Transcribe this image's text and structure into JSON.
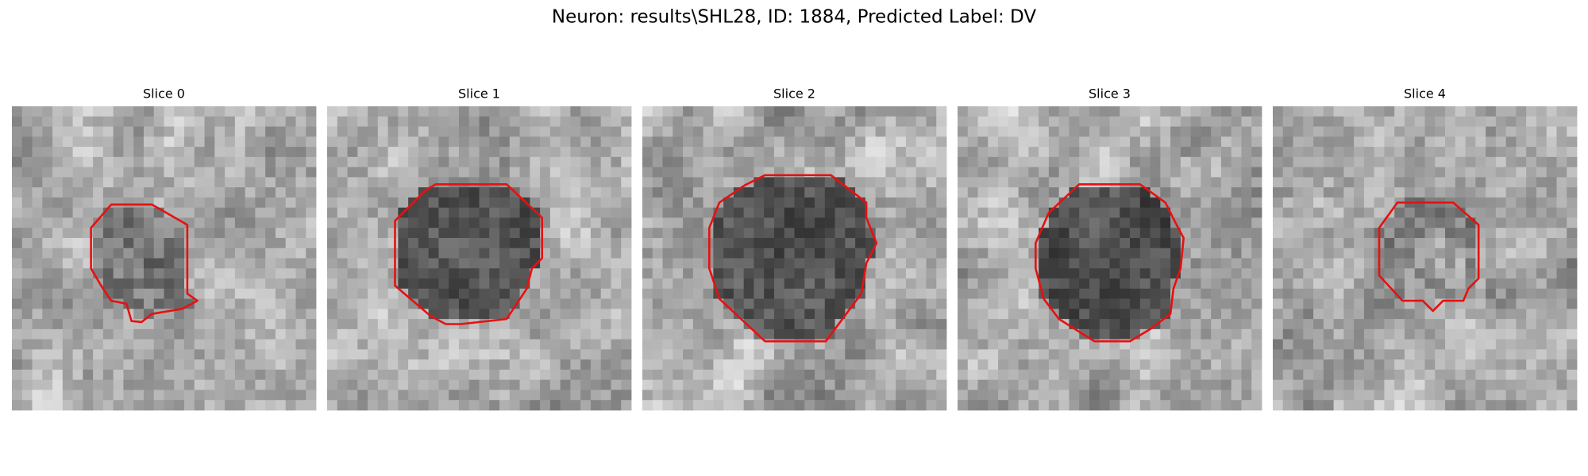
{
  "header": {
    "title": "Neuron: results\\SHL28, ID: 1884, Predicted Label: DV"
  },
  "panels": [
    {
      "title": "Slice 0"
    },
    {
      "title": "Slice 1"
    },
    {
      "title": "Slice 2"
    },
    {
      "title": "Slice 3"
    },
    {
      "title": "Slice 4"
    }
  ]
}
